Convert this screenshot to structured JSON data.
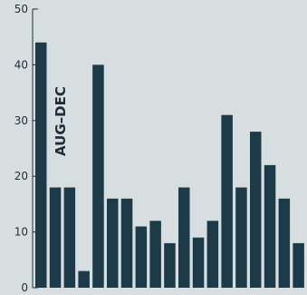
{
  "chart_data": {
    "type": "bar",
    "values": [
      44,
      18,
      18,
      3,
      40,
      16,
      16,
      11,
      12,
      8,
      18,
      9,
      12,
      31,
      18,
      28,
      22,
      16,
      8
    ],
    "ylim": [
      0,
      50
    ],
    "yticks": [
      0,
      10,
      20,
      30,
      40,
      50
    ],
    "annotation": "AUG–DEC",
    "grid": false,
    "colors": {
      "bar": "#1c3a48",
      "axis": "#1c2e36",
      "background": "#d6dedf"
    }
  }
}
